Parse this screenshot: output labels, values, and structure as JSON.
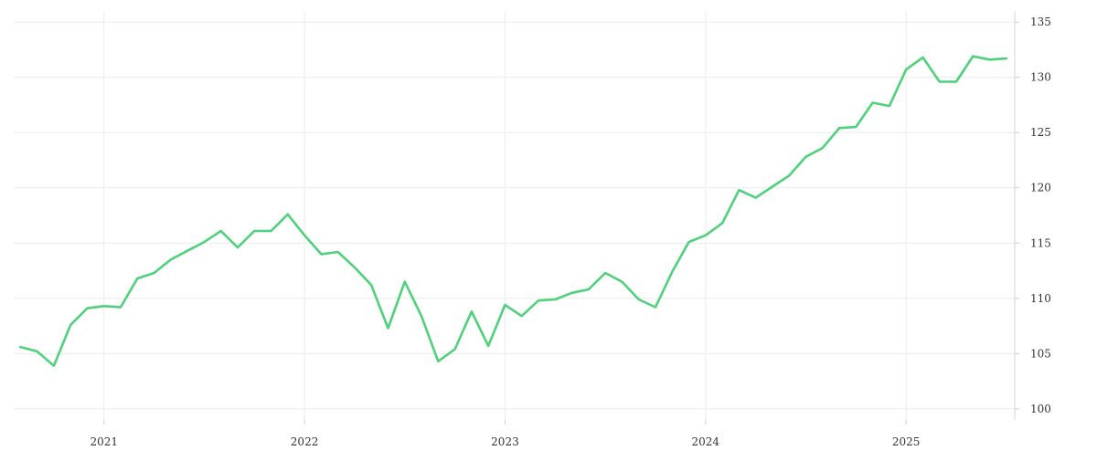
{
  "chart_data": {
    "type": "line",
    "title": "",
    "xlabel": "",
    "ylabel": "",
    "x_ticks": [
      "2021",
      "2022",
      "2023",
      "2024",
      "2025"
    ],
    "y_ticks": [
      "100",
      "105",
      "110",
      "115",
      "120",
      "125",
      "130",
      "135"
    ],
    "ylim": [
      99,
      136
    ],
    "xlim": [
      "2020-07",
      "2025-07"
    ],
    "grid": true,
    "y_axis_side": "right",
    "series": [
      {
        "color": "#4fd17b",
        "points": [
          [
            "2020-08",
            105.6
          ],
          [
            "2020-09",
            105.2
          ],
          [
            "2020-10",
            103.9
          ],
          [
            "2020-11",
            107.6
          ],
          [
            "2020-12",
            109.1
          ],
          [
            "2021-01",
            109.3
          ],
          [
            "2021-02",
            109.2
          ],
          [
            "2021-03",
            111.8
          ],
          [
            "2021-04",
            112.3
          ],
          [
            "2021-05",
            113.5
          ],
          [
            "2021-06",
            114.3
          ],
          [
            "2021-07",
            115.1
          ],
          [
            "2021-08",
            116.1
          ],
          [
            "2021-09",
            114.6
          ],
          [
            "2021-10",
            116.1
          ],
          [
            "2021-11",
            116.1
          ],
          [
            "2021-12",
            117.6
          ],
          [
            "2022-01",
            115.7
          ],
          [
            "2022-02",
            114.0
          ],
          [
            "2022-03",
            114.2
          ],
          [
            "2022-04",
            112.8
          ],
          [
            "2022-05",
            111.2
          ],
          [
            "2022-06",
            107.3
          ],
          [
            "2022-07",
            111.5
          ],
          [
            "2022-08",
            108.4
          ],
          [
            "2022-09",
            104.3
          ],
          [
            "2022-10",
            105.4
          ],
          [
            "2022-11",
            108.8
          ],
          [
            "2022-12",
            105.7
          ],
          [
            "2023-01",
            109.4
          ],
          [
            "2023-02",
            108.4
          ],
          [
            "2023-03",
            109.8
          ],
          [
            "2023-04",
            109.9
          ],
          [
            "2023-05",
            110.5
          ],
          [
            "2023-06",
            110.8
          ],
          [
            "2023-07",
            112.3
          ],
          [
            "2023-08",
            111.5
          ],
          [
            "2023-09",
            109.9
          ],
          [
            "2023-10",
            109.2
          ],
          [
            "2023-11",
            112.4
          ],
          [
            "2023-12",
            115.1
          ],
          [
            "2024-01",
            115.7
          ],
          [
            "2024-02",
            116.8
          ],
          [
            "2024-03",
            119.8
          ],
          [
            "2024-04",
            119.1
          ],
          [
            "2024-05",
            120.1
          ],
          [
            "2024-06",
            121.1
          ],
          [
            "2024-07",
            122.8
          ],
          [
            "2024-08",
            123.6
          ],
          [
            "2024-09",
            125.4
          ],
          [
            "2024-10",
            125.5
          ],
          [
            "2024-11",
            127.7
          ],
          [
            "2024-12",
            127.4
          ],
          [
            "2025-01",
            130.7
          ],
          [
            "2025-02",
            131.8
          ],
          [
            "2025-03",
            129.6
          ],
          [
            "2025-04",
            129.6
          ],
          [
            "2025-05",
            131.9
          ],
          [
            "2025-06",
            131.6
          ],
          [
            "2025-07",
            131.7
          ]
        ]
      }
    ]
  }
}
